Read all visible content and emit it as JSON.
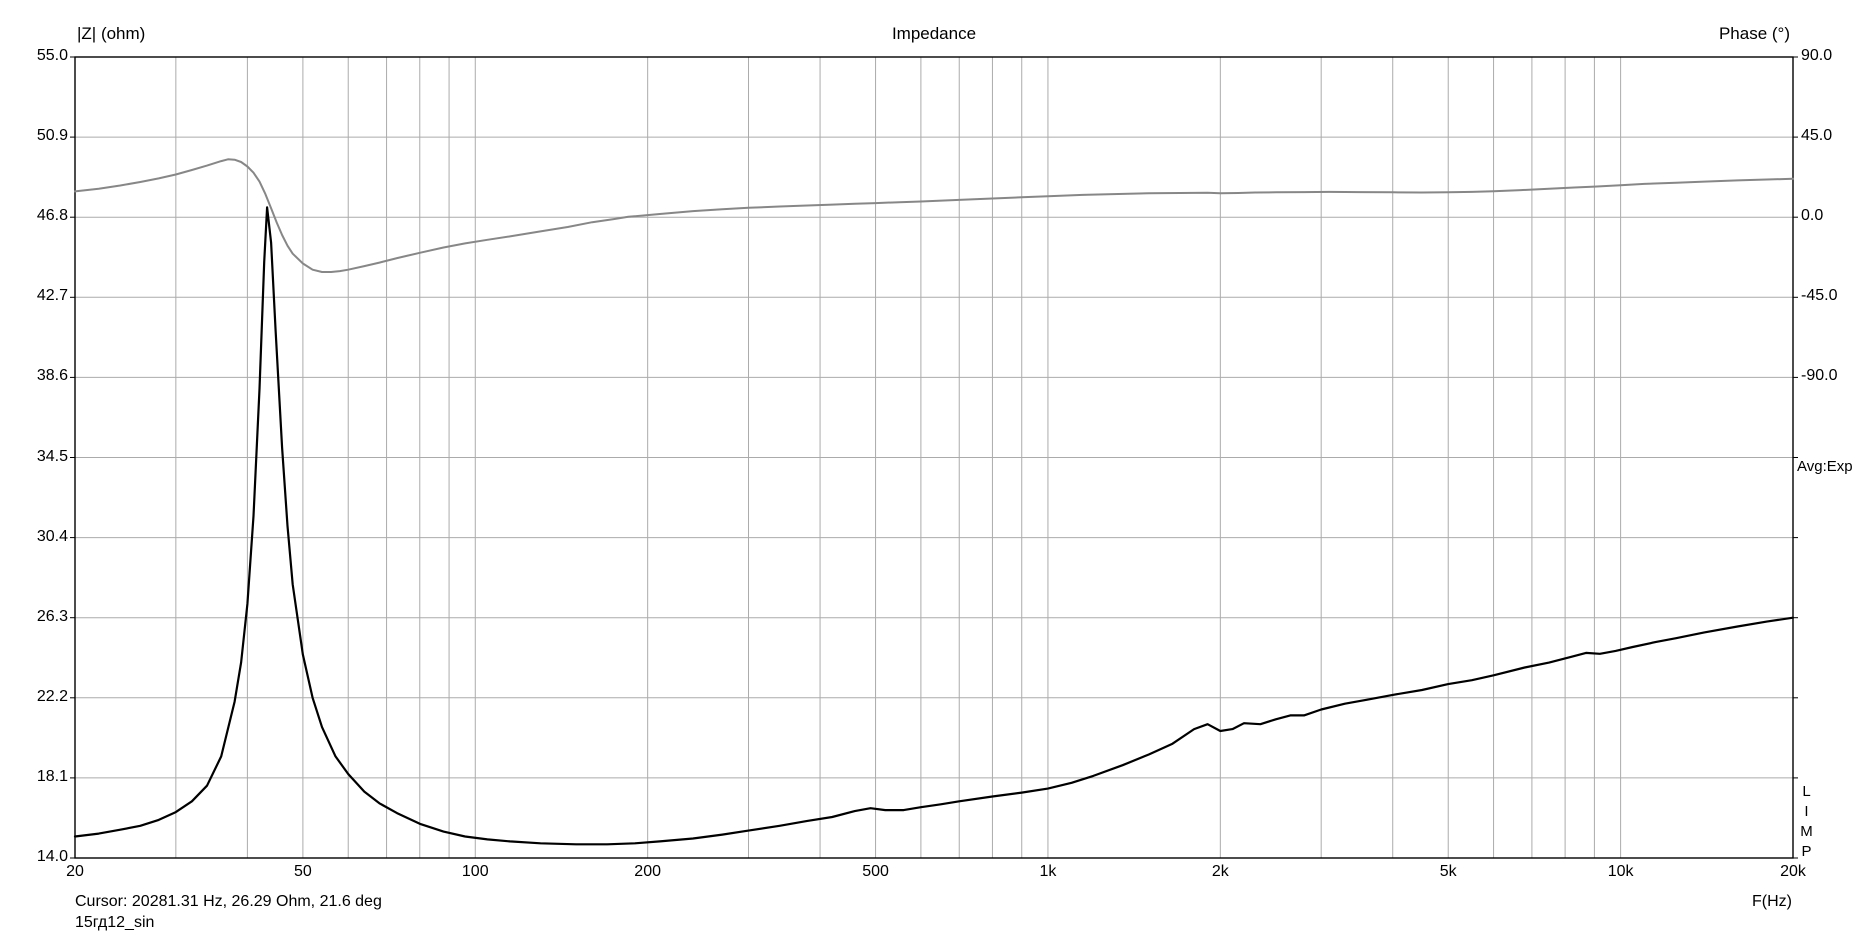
{
  "header": {
    "title": "Impedance",
    "left_axis_title": "|Z| (ohm)",
    "right_axis_title": "Phase (°)"
  },
  "side": {
    "avg_label": "Avg:Exp",
    "program_label": "LIMP",
    "freq_axis_label": "F(Hz)"
  },
  "footer": {
    "cursor_text": "Cursor: 20281.31 Hz, 26.29 Ohm, 21.6 deg",
    "file_name": "15гд12_sin"
  },
  "chart_data": {
    "type": "line",
    "title": "Impedance",
    "x_scale": "log",
    "x_range": [
      20,
      20000
    ],
    "xlabel": "F(Hz)",
    "grid": true,
    "grid_color": "#ababab",
    "border_color": "#000000",
    "x_ticks": [
      {
        "f": 20,
        "label": "20"
      },
      {
        "f": 50,
        "label": "50"
      },
      {
        "f": 100,
        "label": "100"
      },
      {
        "f": 200,
        "label": "200"
      },
      {
        "f": 500,
        "label": "500"
      },
      {
        "f": 1000,
        "label": "1k"
      },
      {
        "f": 2000,
        "label": "2k"
      },
      {
        "f": 5000,
        "label": "5k"
      },
      {
        "f": 10000,
        "label": "10k"
      },
      {
        "f": 20000,
        "label": "20k"
      }
    ],
    "y_left": {
      "label": "|Z| (ohm)",
      "unit": "ohm",
      "range": [
        14.0,
        55.0
      ],
      "tick_labels": [
        "55.0",
        "50.9",
        "46.8",
        "42.7",
        "38.6",
        "34.5",
        "30.4",
        "26.3",
        "22.2",
        "18.1",
        "14.0"
      ],
      "tick_values": [
        55.0,
        50.9,
        46.8,
        42.7,
        38.6,
        34.5,
        30.4,
        26.3,
        22.2,
        18.1,
        14.0
      ]
    },
    "y_right": {
      "label": "Phase (°)",
      "unit": "deg",
      "tick_labels": [
        "90.0",
        "45.0",
        "0.0",
        "-45.0",
        "-90.0"
      ],
      "tick_values": [
        90,
        45,
        0,
        -45,
        -90
      ],
      "deg_per_division": 45
    },
    "series": [
      {
        "name": "impedance",
        "axis": "left",
        "color": "#000000",
        "width": 2.2,
        "points": [
          [
            20,
            15.1
          ],
          [
            22,
            15.25
          ],
          [
            24,
            15.45
          ],
          [
            26,
            15.65
          ],
          [
            28,
            15.95
          ],
          [
            30,
            16.35
          ],
          [
            32,
            16.9
          ],
          [
            34,
            17.7
          ],
          [
            36,
            19.2
          ],
          [
            38,
            22.0
          ],
          [
            39,
            24.0
          ],
          [
            40,
            27.0
          ],
          [
            41,
            31.5
          ],
          [
            42,
            38.0
          ],
          [
            42.8,
            44.5
          ],
          [
            43.3,
            47.3
          ],
          [
            44,
            45.5
          ],
          [
            44.8,
            41.0
          ],
          [
            46,
            35.0
          ],
          [
            47,
            31.0
          ],
          [
            48,
            28.0
          ],
          [
            50,
            24.4
          ],
          [
            52,
            22.2
          ],
          [
            54,
            20.7
          ],
          [
            57,
            19.2
          ],
          [
            60,
            18.3
          ],
          [
            64,
            17.4
          ],
          [
            68,
            16.8
          ],
          [
            73,
            16.3
          ],
          [
            80,
            15.75
          ],
          [
            88,
            15.35
          ],
          [
            96,
            15.1
          ],
          [
            105,
            14.95
          ],
          [
            115,
            14.85
          ],
          [
            130,
            14.75
          ],
          [
            150,
            14.7
          ],
          [
            170,
            14.7
          ],
          [
            190,
            14.75
          ],
          [
            210,
            14.85
          ],
          [
            240,
            15.0
          ],
          [
            270,
            15.2
          ],
          [
            300,
            15.4
          ],
          [
            340,
            15.65
          ],
          [
            380,
            15.9
          ],
          [
            420,
            16.1
          ],
          [
            460,
            16.4
          ],
          [
            490,
            16.55
          ],
          [
            520,
            16.45
          ],
          [
            560,
            16.45
          ],
          [
            600,
            16.6
          ],
          [
            650,
            16.75
          ],
          [
            700,
            16.9
          ],
          [
            800,
            17.15
          ],
          [
            900,
            17.35
          ],
          [
            1000,
            17.55
          ],
          [
            1100,
            17.85
          ],
          [
            1200,
            18.2
          ],
          [
            1350,
            18.75
          ],
          [
            1500,
            19.3
          ],
          [
            1650,
            19.85
          ],
          [
            1800,
            20.6
          ],
          [
            1900,
            20.85
          ],
          [
            2000,
            20.5
          ],
          [
            2100,
            20.6
          ],
          [
            2200,
            20.9
          ],
          [
            2350,
            20.85
          ],
          [
            2500,
            21.1
          ],
          [
            2650,
            21.3
          ],
          [
            2800,
            21.3
          ],
          [
            3000,
            21.6
          ],
          [
            3300,
            21.9
          ],
          [
            3600,
            22.1
          ],
          [
            4000,
            22.35
          ],
          [
            4500,
            22.6
          ],
          [
            5000,
            22.9
          ],
          [
            5500,
            23.1
          ],
          [
            6000,
            23.35
          ],
          [
            6800,
            23.75
          ],
          [
            7500,
            24.0
          ],
          [
            8200,
            24.3
          ],
          [
            8700,
            24.5
          ],
          [
            9200,
            24.45
          ],
          [
            9800,
            24.6
          ],
          [
            10500,
            24.8
          ],
          [
            11500,
            25.05
          ],
          [
            12500,
            25.25
          ],
          [
            14000,
            25.55
          ],
          [
            16000,
            25.85
          ],
          [
            18000,
            26.1
          ],
          [
            20000,
            26.3
          ]
        ]
      },
      {
        "name": "phase",
        "axis": "right",
        "color": "#878787",
        "width": 2,
        "points": [
          [
            20,
            14.5
          ],
          [
            22,
            16
          ],
          [
            24,
            17.8
          ],
          [
            26,
            19.8
          ],
          [
            28,
            21.8
          ],
          [
            30,
            24
          ],
          [
            32,
            26.5
          ],
          [
            34,
            29
          ],
          [
            36,
            31.5
          ],
          [
            37,
            32.5
          ],
          [
            38,
            32.3
          ],
          [
            39,
            31
          ],
          [
            40,
            28.5
          ],
          [
            41,
            25
          ],
          [
            42,
            20
          ],
          [
            43,
            13
          ],
          [
            44,
            5
          ],
          [
            45,
            -3
          ],
          [
            46,
            -10
          ],
          [
            47,
            -16
          ],
          [
            48,
            -20.5
          ],
          [
            50,
            -26
          ],
          [
            52,
            -29.5
          ],
          [
            54,
            -30.8
          ],
          [
            56,
            -30.8
          ],
          [
            58,
            -30.3
          ],
          [
            60,
            -29.5
          ],
          [
            64,
            -27.5
          ],
          [
            68,
            -25.5
          ],
          [
            73,
            -23
          ],
          [
            80,
            -20
          ],
          [
            88,
            -17
          ],
          [
            96,
            -14.7
          ],
          [
            105,
            -12.7
          ],
          [
            115,
            -10.8
          ],
          [
            130,
            -8
          ],
          [
            145,
            -5.5
          ],
          [
            160,
            -2.8
          ],
          [
            175,
            -1.0
          ],
          [
            185,
            0.2
          ],
          [
            210,
            1.8
          ],
          [
            240,
            3.4
          ],
          [
            270,
            4.5
          ],
          [
            300,
            5.3
          ],
          [
            340,
            6.0
          ],
          [
            380,
            6.6
          ],
          [
            420,
            7.1
          ],
          [
            460,
            7.5
          ],
          [
            500,
            7.9
          ],
          [
            550,
            8.4
          ],
          [
            600,
            8.8
          ],
          [
            700,
            9.7
          ],
          [
            800,
            10.5
          ],
          [
            900,
            11.2
          ],
          [
            1000,
            11.8
          ],
          [
            1150,
            12.5
          ],
          [
            1300,
            13.0
          ],
          [
            1500,
            13.4
          ],
          [
            1700,
            13.6
          ],
          [
            1900,
            13.7
          ],
          [
            2000,
            13.4
          ],
          [
            2150,
            13.6
          ],
          [
            2300,
            13.9
          ],
          [
            2500,
            14.0
          ],
          [
            2800,
            14.1
          ],
          [
            3100,
            14.2
          ],
          [
            3500,
            14.1
          ],
          [
            4000,
            14.0
          ],
          [
            4500,
            13.9
          ],
          [
            5000,
            14.0
          ],
          [
            5500,
            14.2
          ],
          [
            6000,
            14.6
          ],
          [
            6700,
            15.2
          ],
          [
            7500,
            16.0
          ],
          [
            8300,
            16.7
          ],
          [
            9000,
            17.2
          ],
          [
            10000,
            18.0
          ],
          [
            11000,
            18.7
          ],
          [
            12500,
            19.4
          ],
          [
            14000,
            20.0
          ],
          [
            16000,
            20.7
          ],
          [
            18000,
            21.2
          ],
          [
            20000,
            21.6
          ]
        ]
      }
    ],
    "cursor": {
      "frequency_hz": 20281.31,
      "impedance_ohm": 26.29,
      "phase_deg": 21.6
    },
    "averaging_mode": "Avg:Exp"
  }
}
